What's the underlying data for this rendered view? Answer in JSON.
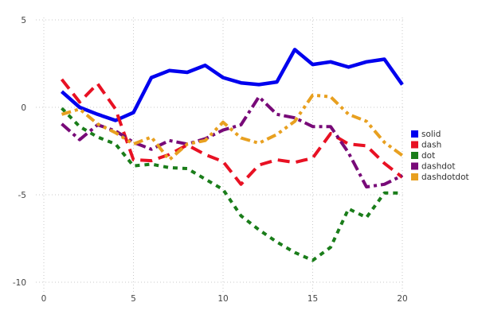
{
  "chart_data": {
    "type": "line",
    "title": "",
    "xlabel": "",
    "ylabel": "",
    "x": [
      1,
      2,
      3,
      4,
      5,
      6,
      7,
      8,
      9,
      10,
      11,
      12,
      13,
      14,
      15,
      16,
      17,
      18,
      19,
      20
    ],
    "series": [
      {
        "name": "solid",
        "color": "#0000ee",
        "style": "solid",
        "values": [
          0.9,
          0.0,
          -0.4,
          -0.75,
          -0.3,
          1.7,
          2.1,
          2.0,
          2.4,
          1.7,
          1.4,
          1.3,
          1.45,
          3.3,
          2.45,
          2.6,
          2.3,
          2.6,
          2.75,
          1.3
        ]
      },
      {
        "name": "dash",
        "color": "#e81123",
        "style": "dash",
        "values": [
          1.6,
          0.3,
          1.35,
          -0.1,
          -3.0,
          -3.05,
          -2.7,
          -2.15,
          -2.7,
          -3.1,
          -4.4,
          -3.3,
          -3.0,
          -3.15,
          -2.9,
          -1.5,
          -2.1,
          -2.2,
          -3.2,
          -4.0
        ]
      },
      {
        "name": "dot",
        "color": "#1a7d1a",
        "style": "dot",
        "values": [
          -0.05,
          -1.1,
          -1.7,
          -2.1,
          -3.35,
          -3.25,
          -3.45,
          -3.5,
          -4.1,
          -4.7,
          -6.2,
          -7.0,
          -7.7,
          -8.3,
          -8.75,
          -8.0,
          -5.8,
          -6.3,
          -4.9,
          -4.9
        ]
      },
      {
        "name": "dashdot",
        "color": "#780a78",
        "style": "dashdot",
        "values": [
          -0.95,
          -1.85,
          -1.0,
          -1.35,
          -2.0,
          -2.4,
          -1.9,
          -2.1,
          -1.8,
          -1.3,
          -1.0,
          0.6,
          -0.4,
          -0.6,
          -1.1,
          -1.1,
          -2.6,
          -4.55,
          -4.4,
          -3.9
        ]
      },
      {
        "name": "dashdotdot",
        "color": "#e8a020",
        "style": "dashdotdot",
        "values": [
          -0.4,
          -0.1,
          -0.95,
          -1.45,
          -2.1,
          -1.7,
          -3.0,
          -2.1,
          -1.9,
          -0.85,
          -1.75,
          -2.05,
          -1.55,
          -0.8,
          0.7,
          0.6,
          -0.4,
          -0.8,
          -2.0,
          -2.75
        ]
      }
    ],
    "x_ticks": [
      0,
      5,
      10,
      15,
      20
    ],
    "y_ticks": [
      5,
      0,
      -5,
      -10
    ],
    "xlim": [
      0,
      20
    ],
    "ylim": [
      -10,
      5
    ],
    "grid": true,
    "legend_position": "right",
    "legend_entries": [
      "solid",
      "dash",
      "dot",
      "dashdot",
      "dashdotdot"
    ],
    "colors": {
      "grid": "#c9c9c9",
      "tick_text": "#454545",
      "legend_text": "#303030",
      "background": "#ffffff"
    }
  }
}
